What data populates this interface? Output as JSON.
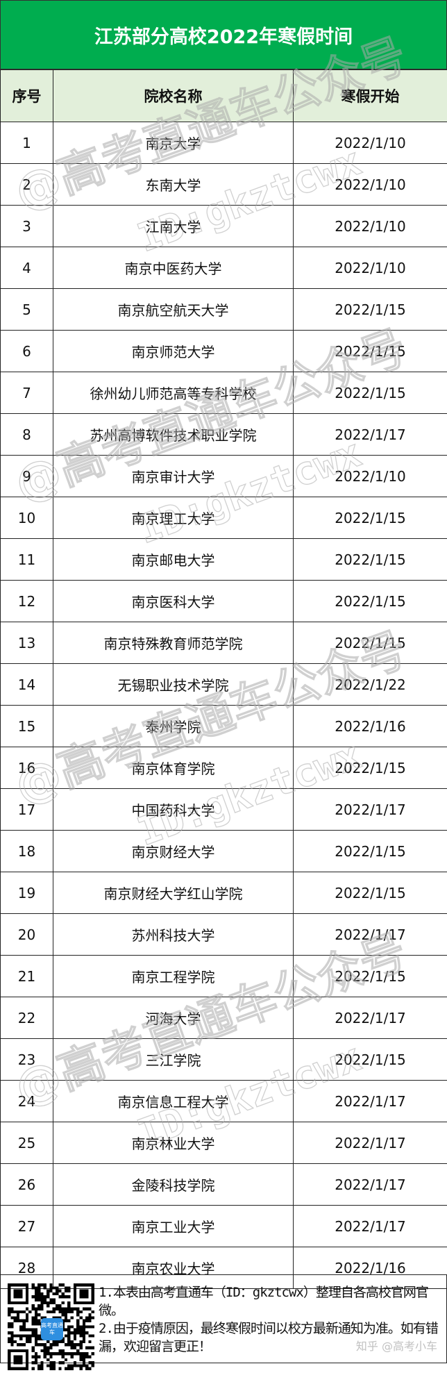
{
  "title": "江苏部分高校2022年寒假时间",
  "headers": [
    "序号",
    "院校名称",
    "寒假开始"
  ],
  "rows": [
    [
      "1",
      "南京大学",
      "2022/1/10"
    ],
    [
      "2",
      "东南大学",
      "2022/1/10"
    ],
    [
      "3",
      "江南大学",
      "2022/1/10"
    ],
    [
      "4",
      "南京中医药大学",
      "2022/1/10"
    ],
    [
      "5",
      "南京航空航天大学",
      "2022/1/15"
    ],
    [
      "6",
      "南京师范大学",
      "2022/1/15"
    ],
    [
      "7",
      "徐州幼儿师范高等专科学校",
      "2022/1/15"
    ],
    [
      "8",
      "苏州高博软件技术职业学院",
      "2022/1/17"
    ],
    [
      "9",
      "南京审计大学",
      "2022/1/10"
    ],
    [
      "10",
      "南京理工大学",
      "2022/1/15"
    ],
    [
      "11",
      "南京邮电大学",
      "2022/1/15"
    ],
    [
      "12",
      "南京医科大学",
      "2022/1/15"
    ],
    [
      "13",
      "南京特殊教育师范学院",
      "2022/1/15"
    ],
    [
      "14",
      "无锡职业技术学院",
      "2022/1/22"
    ],
    [
      "15",
      "泰州学院",
      "2022/1/16"
    ],
    [
      "16",
      "南京体育学院",
      "2022/1/15"
    ],
    [
      "17",
      "中国药科大学",
      "2022/1/17"
    ],
    [
      "18",
      "南京财经大学",
      "2022/1/15"
    ],
    [
      "19",
      "南京财经大学红山学院",
      "2022/1/15"
    ],
    [
      "20",
      "苏州科技大学",
      "2022/1/17"
    ],
    [
      "21",
      "南京工程学院",
      "2022/1/15"
    ],
    [
      "22",
      "河海大学",
      "2022/1/17"
    ],
    [
      "23",
      "三江学院",
      "2022/1/15"
    ],
    [
      "24",
      "南京信息工程大学",
      "2022/1/17"
    ],
    [
      "25",
      "南京林业大学",
      "2022/1/17"
    ],
    [
      "26",
      "金陵科技学院",
      "2022/1/17"
    ],
    [
      "27",
      "南京工业大学",
      "2022/1/17"
    ],
    [
      "28",
      "南京农业大学",
      "2022/1/16"
    ]
  ],
  "footer": {
    "qr_logo": "高考直通车",
    "notes": [
      "1.本表由高考直通车（ID：gkztcwx）整理自各高校官网官微。",
      "2.由于疫情原因，最终寒假时间以校方最新通知为准。如有错漏，欢迎留言更正！"
    ]
  },
  "watermark": {
    "line1": "@高考直通车公众号",
    "line2": "ID:gkztcwx"
  },
  "zhihu_watermark": "知乎 @高考小车",
  "colors": {
    "title_bg": "#00ad4f",
    "header_bg": "#e2efda"
  }
}
